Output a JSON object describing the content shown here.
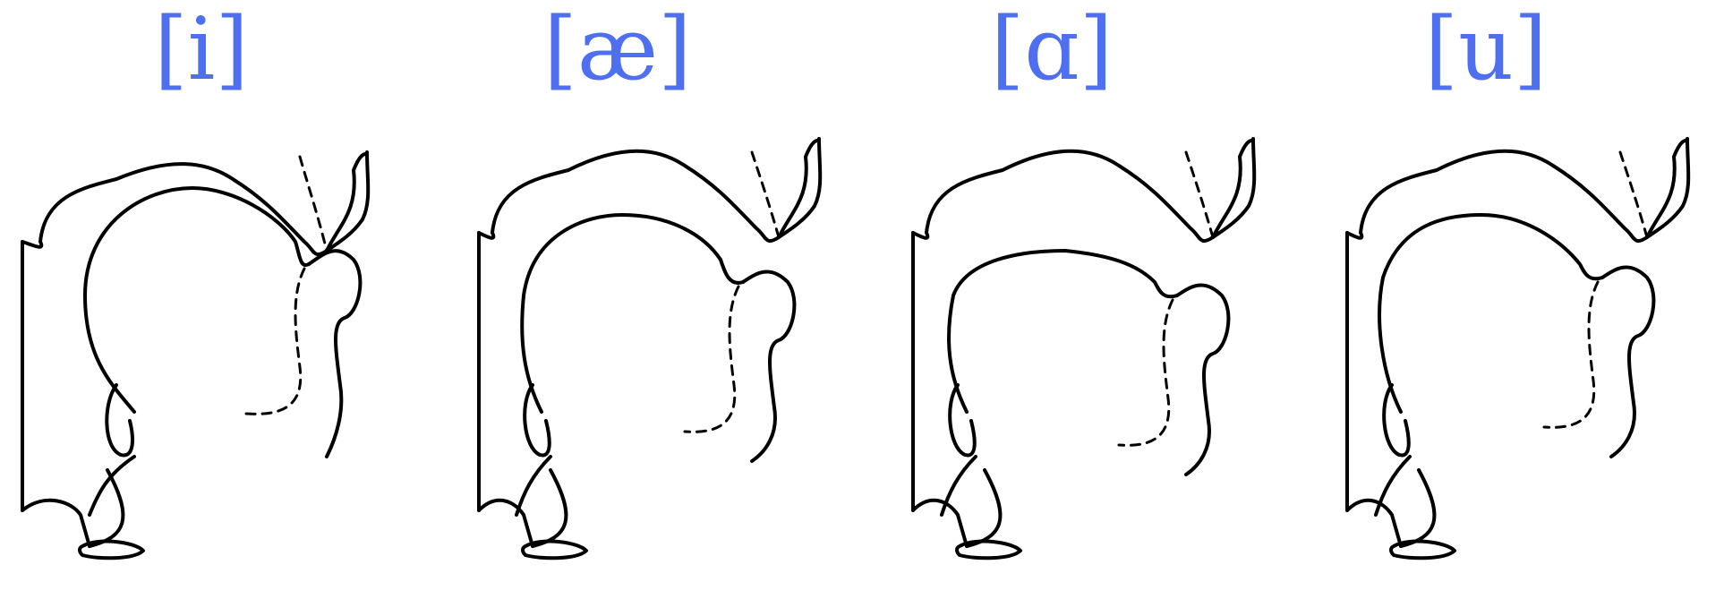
{
  "vowels": [
    {
      "label": "[i]"
    },
    {
      "label": "[æ]"
    },
    {
      "label": "[ɑ]"
    },
    {
      "label": "[u]"
    }
  ],
  "colors": {
    "label": "#4d6ff0",
    "line": "#000000",
    "background": "#ffffff"
  }
}
